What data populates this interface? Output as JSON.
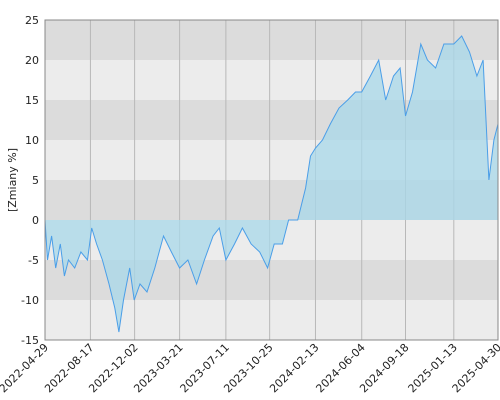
{
  "chart_data": {
    "type": "area",
    "y_label": "[Zmiany %]",
    "x": [
      "2022-04-29",
      "2022-05-05",
      "2022-05-15",
      "2022-05-25",
      "2022-06-05",
      "2022-06-15",
      "2022-06-25",
      "2022-07-10",
      "2022-07-25",
      "2022-08-10",
      "2022-08-20",
      "2022-09-01",
      "2022-09-15",
      "2022-10-01",
      "2022-10-15",
      "2022-10-25",
      "2022-11-05",
      "2022-11-20",
      "2022-12-01",
      "2022-12-15",
      "2023-01-01",
      "2023-01-20",
      "2023-02-10",
      "2023-03-01",
      "2023-03-21",
      "2023-04-10",
      "2023-05-01",
      "2023-05-20",
      "2023-06-10",
      "2023-06-25",
      "2023-07-11",
      "2023-08-01",
      "2023-08-20",
      "2023-09-10",
      "2023-10-01",
      "2023-10-20",
      "2023-11-05",
      "2023-11-25",
      "2023-12-10",
      "2024-01-01",
      "2024-01-20",
      "2024-02-01",
      "2024-02-13",
      "2024-03-01",
      "2024-03-20",
      "2024-04-10",
      "2024-05-01",
      "2024-05-20",
      "2024-06-04",
      "2024-06-25",
      "2024-07-15",
      "2024-08-01",
      "2024-08-20",
      "2024-09-05",
      "2024-09-18",
      "2024-10-05",
      "2024-10-25",
      "2024-11-10",
      "2024-11-30",
      "2024-12-20",
      "2025-01-13",
      "2025-02-01",
      "2025-02-20",
      "2025-03-10",
      "2025-03-25",
      "2025-04-08",
      "2025-04-20",
      "2025-04-30"
    ],
    "series": [
      {
        "color": "#4a9ee8",
        "fill": "#a8d8ea",
        "values": [
          0,
          -5,
          -2,
          -6,
          -3,
          -7,
          -5,
          -6,
          -4,
          -5,
          -1,
          -3,
          -5,
          -8,
          -11,
          -14,
          -10,
          -6,
          -10,
          -8,
          -9,
          -6,
          -2,
          -4,
          -6,
          -5,
          -8,
          -5,
          -2,
          -1,
          -5,
          -3,
          -1,
          -3,
          -4,
          -6,
          -3,
          -3,
          0,
          0,
          4,
          8,
          9,
          10,
          12,
          14,
          15,
          16,
          16,
          18,
          20,
          15,
          18,
          19,
          13,
          16,
          22,
          20,
          19,
          22,
          22,
          23,
          21,
          18,
          20,
          5,
          10,
          12
        ]
      }
    ],
    "xlim": [
      "2022-04-29",
      "2025-04-30"
    ],
    "xticks": [
      "2022-04-29",
      "2022-08-17",
      "2022-12-02",
      "2023-03-21",
      "2023-07-11",
      "2023-10-25",
      "2024-02-13",
      "2024-06-04",
      "2024-09-18",
      "2025-01-13",
      "2025-04-30"
    ],
    "ylim": [
      -15,
      25
    ],
    "yticks": [
      -15,
      -10,
      -5,
      0,
      5,
      10,
      15,
      20,
      25
    ],
    "grid": true
  }
}
